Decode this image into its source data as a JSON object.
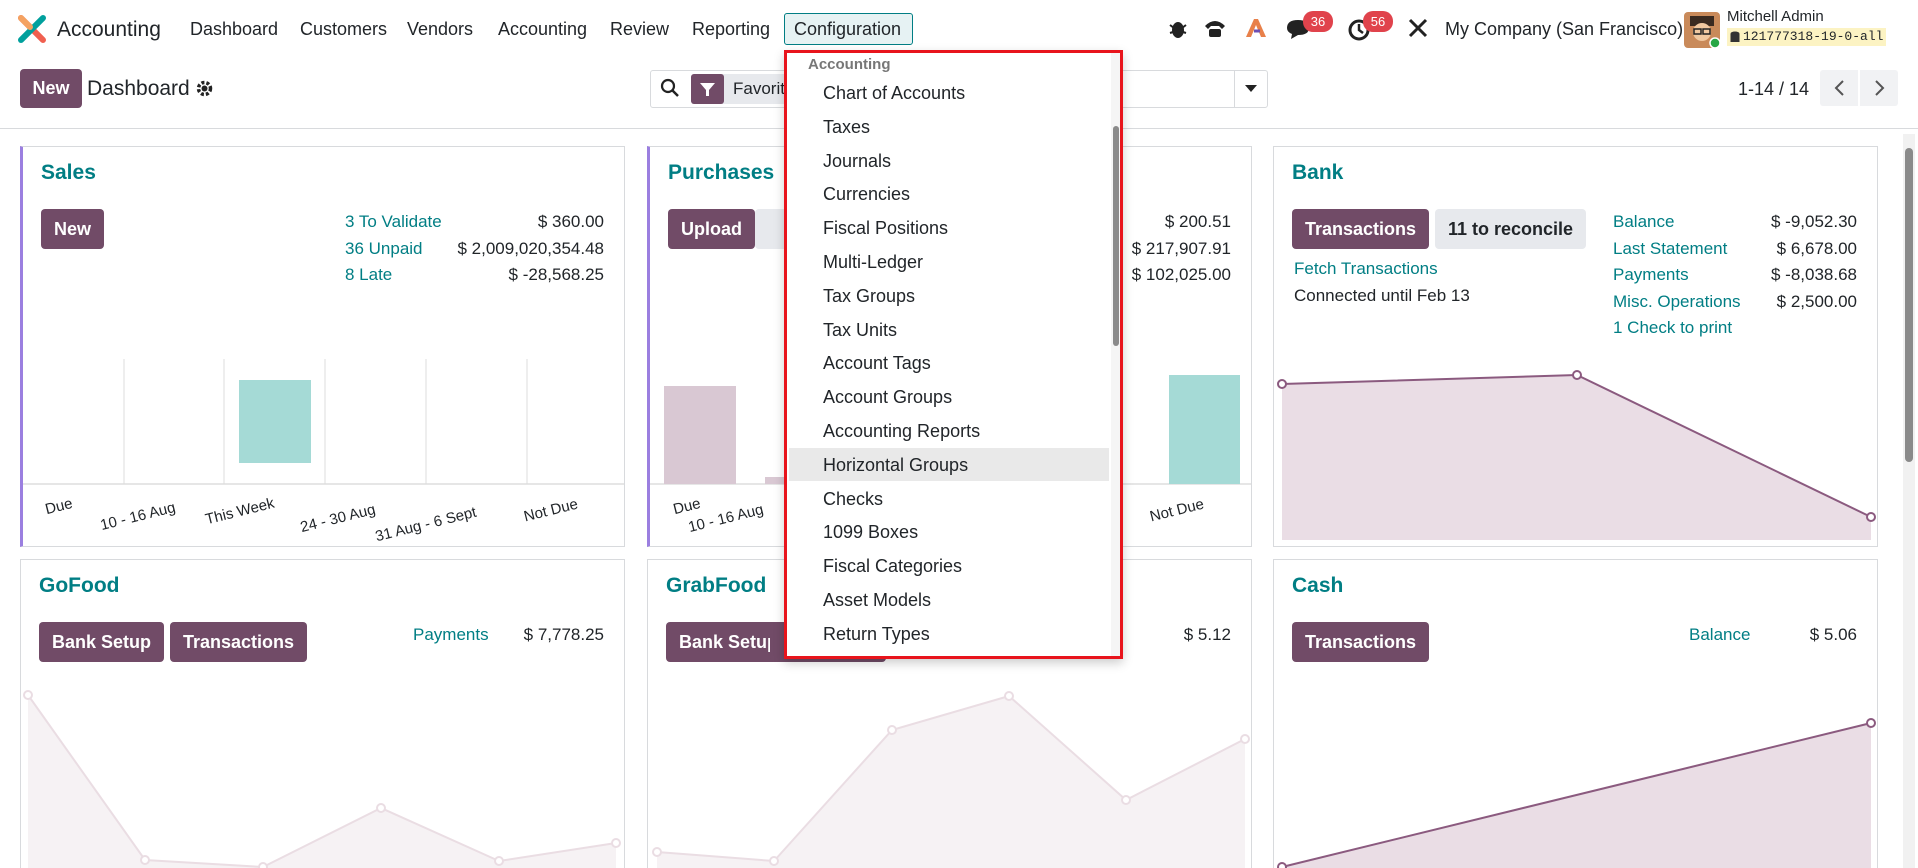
{
  "navbar": {
    "app_name": "Accounting",
    "menu": [
      "Dashboard",
      "Customers",
      "Vendors",
      "Accounting",
      "Review",
      "Reporting",
      "Configuration"
    ],
    "chat_count": "36",
    "activity_count": "56",
    "company": "My Company (San Francisco)",
    "user_name": "Mitchell Admin",
    "database": "121777318-19-0-all"
  },
  "control_panel": {
    "new_button": "New",
    "breadcrumb": "Dashboard",
    "search_facet": "Favorit",
    "pager": "1-14 / 14"
  },
  "dropdown": {
    "section": "Accounting",
    "items": [
      "Chart of Accounts",
      "Taxes",
      "Journals",
      "Currencies",
      "Fiscal Positions",
      "Multi-Ledger",
      "Tax Groups",
      "Tax Units",
      "Account Tags",
      "Account Groups",
      "Accounting Reports",
      "Horizontal Groups",
      "Checks",
      "1099 Boxes",
      "Fiscal Categories",
      "Asset Models",
      "Return Types"
    ]
  },
  "cards": [
    {
      "title": "Sales",
      "buttons": [
        "New"
      ],
      "stats": [
        {
          "label": "3 To Validate",
          "value": "$ 360.00"
        },
        {
          "label": "36 Unpaid",
          "value": "$ 2,009,020,354.48"
        },
        {
          "label": "8 Late",
          "value": "$ -28,568.25"
        }
      ],
      "chart_labels": [
        "Due",
        "10 - 16 Aug",
        "This Week",
        "24 - 30 Aug",
        "31 Aug - 6 Sept",
        "Not Due"
      ]
    },
    {
      "title": "Purchases",
      "buttons": [
        "Upload"
      ],
      "stats": [
        {
          "value": "$ 200.51"
        },
        {
          "value": "$ 217,907.91"
        },
        {
          "value": "$ 102,025.00"
        }
      ],
      "chart_labels": [
        "Due",
        "10 - 16 Aug",
        "Not Due"
      ]
    },
    {
      "title": "Bank",
      "buttons": [
        "Transactions",
        "11 to reconcile"
      ],
      "link": "Fetch Transactions",
      "note": "Connected until Feb 13",
      "stats": [
        {
          "label": "Balance",
          "value": "$ -9,052.30"
        },
        {
          "label": "Last Statement",
          "value": "$ 6,678.00"
        },
        {
          "label": "Payments",
          "value": "$ -8,038.68"
        },
        {
          "label": "Misc. Operations",
          "value": "$ 2,500.00"
        },
        {
          "label": "1 Check to print"
        }
      ]
    },
    {
      "title": "GoFood",
      "buttons": [
        "Bank Setup",
        "Transactions"
      ],
      "stats": [
        {
          "label": "Payments",
          "value": "$ 7,778.25"
        }
      ]
    },
    {
      "title": "GrabFood",
      "buttons": [
        "Bank Setup"
      ],
      "stats": [
        {
          "value": "$ 5.12"
        }
      ]
    },
    {
      "title": "Cash",
      "buttons": [
        "Transactions"
      ],
      "stats": [
        {
          "label": "Balance",
          "value": "$ 5.06"
        }
      ]
    }
  ]
}
